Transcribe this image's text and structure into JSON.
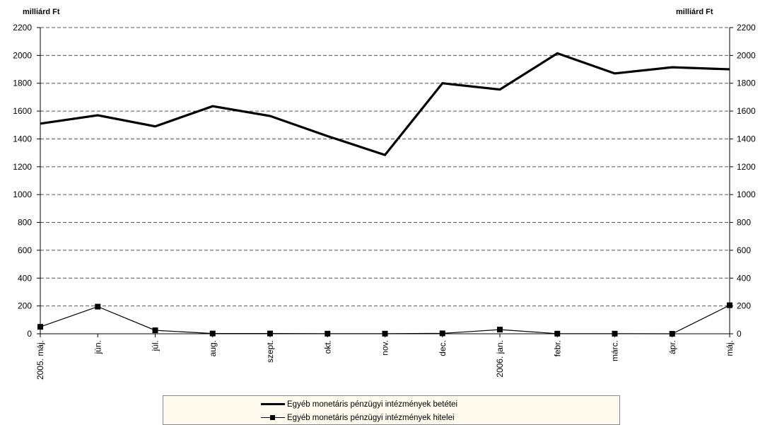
{
  "chart_data": {
    "type": "line",
    "left_axis_unit": "milliárd Ft",
    "right_axis_unit": "milliárd Ft",
    "categories": [
      "2005. máj.",
      "jún.",
      "júl.",
      "aug.",
      "szept.",
      "okt.",
      "nov.",
      "dec.",
      "2006. jan.",
      "febr.",
      "márc.",
      "ápr.",
      "máj."
    ],
    "series": [
      {
        "name": "Egyéb monetáris pénzügyi  intézmények betétei",
        "color": "#000000",
        "marker": "none",
        "values": [
          1510,
          1570,
          1490,
          1635,
          1565,
          1420,
          1285,
          1800,
          1755,
          2015,
          1870,
          1915,
          1900
        ]
      },
      {
        "name": "Egyéb monetáris pénzügyi intézmények hitelei",
        "color": "#000000",
        "marker": "square",
        "values": [
          50,
          195,
          25,
          2,
          2,
          1,
          1,
          3,
          30,
          1,
          1,
          0,
          205
        ]
      }
    ],
    "ylim": [
      0,
      2200
    ],
    "yticks": [
      "0",
      "200",
      "400",
      "600",
      "800",
      "1000",
      "1200",
      "1400",
      "1600",
      "1800",
      "2000",
      "2200"
    ],
    "y2lim": [
      0,
      2200
    ],
    "grid": "horizontal dashed",
    "legend_position": "bottom"
  }
}
